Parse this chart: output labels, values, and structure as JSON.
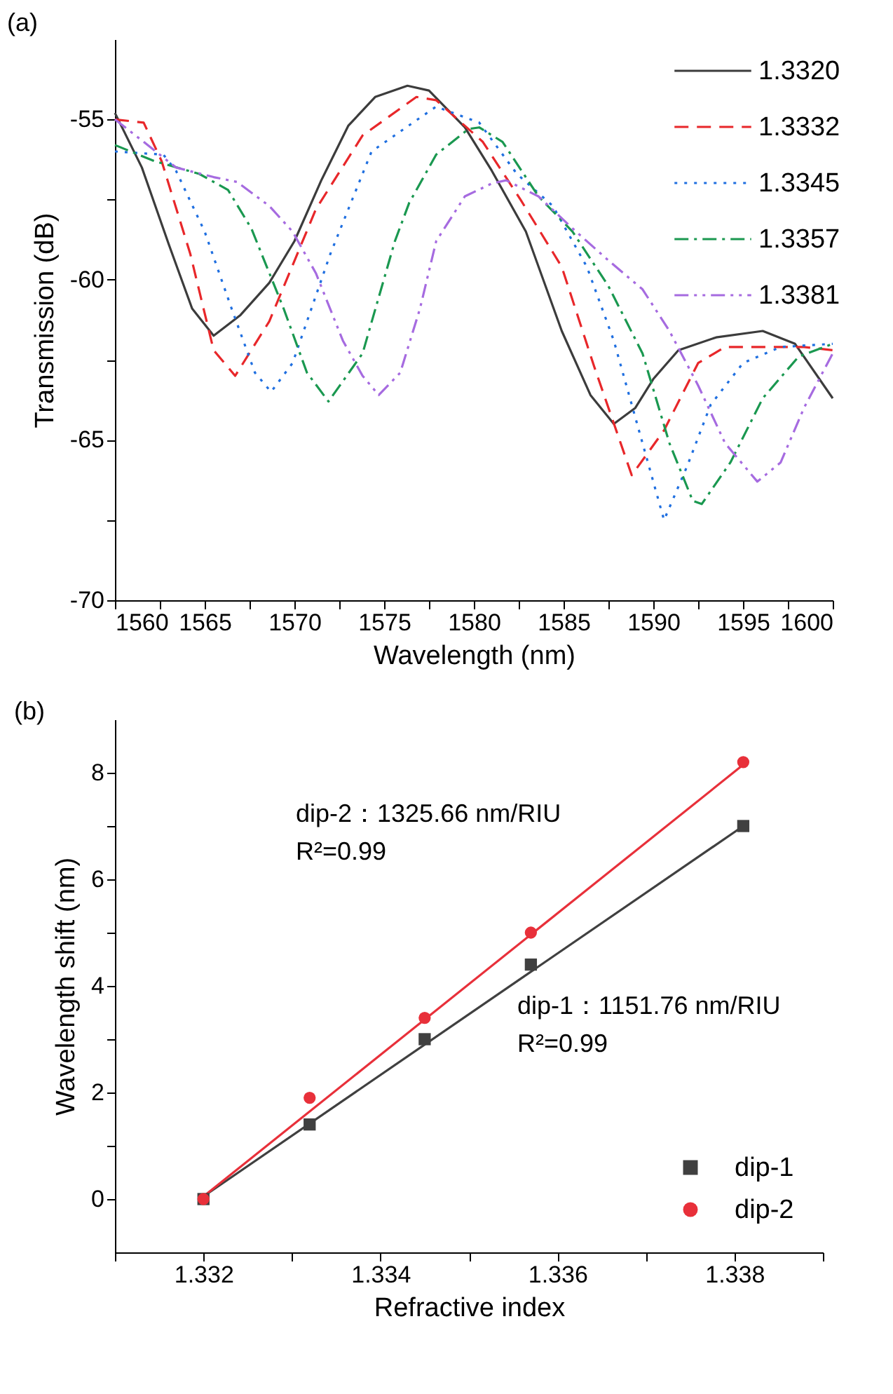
{
  "chart_data": [
    {
      "type": "line",
      "title": "(a)",
      "xlabel": "Wavelength (nm)",
      "ylabel": "Transmission (dB)",
      "xlim": [
        1560,
        1600
      ],
      "ylim": [
        -70,
        -52.5
      ],
      "xticks": [
        1560,
        {
          "value": 1562.5,
          "label": null
        },
        1565,
        {
          "value": 1567.5,
          "label": null
        },
        1570,
        {
          "value": 1572.5,
          "label": null
        },
        1575,
        {
          "value": 1577.5,
          "label": null
        },
        1580,
        {
          "value": 1582.5,
          "label": null
        },
        1585,
        {
          "value": 1587.5,
          "label": null
        },
        1590,
        {
          "value": 1592.5,
          "label": null
        },
        1595,
        {
          "value": 1597.5,
          "label": null
        },
        1600
      ],
      "yticks": [
        -70,
        {
          "value": -67.5,
          "label": null
        },
        -65,
        {
          "value": -62.5,
          "label": null
        },
        -60,
        {
          "value": -57.5,
          "label": null
        },
        -55
      ],
      "grid": false,
      "legend": "top right",
      "series": [
        {
          "name": "1.3320",
          "color": "#3c3c3c",
          "line_style": "solid",
          "x": [
            1560,
            1561.5,
            1563,
            1564.3,
            1565.5,
            1567,
            1568.6,
            1570,
            1571.5,
            1573,
            1574.5,
            1576.3,
            1577.5,
            1579.5,
            1581,
            1582.9,
            1584.9,
            1586.5,
            1587.8,
            1589,
            1590,
            1591.4,
            1593.5,
            1596.1,
            1597.9,
            1600
          ],
          "values": [
            -54.8,
            -56.5,
            -58.9,
            -60.9,
            -61.75,
            -61.1,
            -60.1,
            -58.8,
            -56.9,
            -55.2,
            -54.3,
            -53.95,
            -54.1,
            -55.25,
            -56.6,
            -58.5,
            -61.6,
            -63.6,
            -64.5,
            -64.0,
            -63.1,
            -62.2,
            -61.8,
            -61.6,
            -62.0,
            -63.7
          ]
        },
        {
          "name": "1.3332",
          "color": "#e8272a",
          "line_style": "dashed",
          "x": [
            1560,
            1561.6,
            1562.6,
            1564.2,
            1565.5,
            1566.7,
            1568.6,
            1571.2,
            1573.8,
            1576.8,
            1577.9,
            1580.5,
            1582.6,
            1584.9,
            1586.7,
            1588.8,
            1590.6,
            1592.5,
            1594,
            1598.4,
            1600
          ],
          "values": [
            -55.0,
            -55.1,
            -56.3,
            -59.2,
            -62.2,
            -63.0,
            -61.3,
            -57.8,
            -55.5,
            -54.3,
            -54.4,
            -55.7,
            -57.5,
            -59.6,
            -62.7,
            -66.1,
            -64.7,
            -62.6,
            -62.1,
            -62.1,
            -62.2
          ]
        },
        {
          "name": "1.3345",
          "color": "#1f6fe0",
          "line_style": "dotted",
          "x": [
            1560,
            1562.7,
            1563.4,
            1565,
            1566.5,
            1567.8,
            1568.7,
            1569.9,
            1572,
            1574.3,
            1577.9,
            1580.3,
            1582.4,
            1584.4,
            1586.3,
            1587.8,
            1589.4,
            1590.6,
            1591.9,
            1593.2,
            1595,
            1597.1,
            1600
          ],
          "values": [
            -56.0,
            -56.1,
            -56.6,
            -58.5,
            -60.9,
            -62.9,
            -63.5,
            -62.6,
            -59.2,
            -56.0,
            -54.6,
            -55.1,
            -56.7,
            -57.7,
            -59.6,
            -61.9,
            -65.1,
            -67.5,
            -65.8,
            -63.9,
            -62.6,
            -62.1,
            -62.0
          ]
        },
        {
          "name": "1.3357",
          "color": "#1a9850",
          "line_style": "dashdot",
          "x": [
            1560,
            1562.2,
            1564.7,
            1566.3,
            1567.6,
            1569.4,
            1570.7,
            1571.9,
            1573.8,
            1575.6,
            1576.4,
            1577.9,
            1579.7,
            1580.3,
            1581.6,
            1583.6,
            1585.5,
            1587.5,
            1589.4,
            1590.9,
            1592.2,
            1592.7,
            1594.3,
            1596.1,
            1598.1,
            1600
          ],
          "values": [
            -55.8,
            -56.3,
            -56.7,
            -57.2,
            -58.4,
            -60.9,
            -62.9,
            -63.8,
            -62.3,
            -58.8,
            -57.6,
            -56.1,
            -55.3,
            -55.25,
            -55.7,
            -57.4,
            -58.5,
            -60.2,
            -62.3,
            -65.1,
            -66.9,
            -67.0,
            -65.7,
            -63.7,
            -62.4,
            -62.0
          ]
        },
        {
          "name": "1.3381",
          "color": "#a66be0",
          "line_style": "dashdotdot",
          "x": [
            1560,
            1561.6,
            1563.4,
            1565.5,
            1566.8,
            1568.6,
            1569.9,
            1571.2,
            1572.7,
            1573.8,
            1574.7,
            1575.9,
            1577,
            1577.9,
            1579.5,
            1581,
            1581.8,
            1583.6,
            1585.5,
            1587.5,
            1589.4,
            1590.9,
            1592.5,
            1594,
            1595.8,
            1597.1,
            1598.4,
            1600
          ],
          "values": [
            -55.0,
            -55.7,
            -56.5,
            -56.8,
            -56.95,
            -57.7,
            -58.5,
            -59.8,
            -61.9,
            -63.0,
            -63.6,
            -62.9,
            -60.9,
            -58.8,
            -57.4,
            -57.0,
            -56.9,
            -57.4,
            -58.4,
            -59.4,
            -60.3,
            -61.6,
            -63.3,
            -65.1,
            -66.3,
            -65.7,
            -64.0,
            -62.3
          ]
        }
      ]
    },
    {
      "type": "scatter",
      "title": "(b)",
      "xlabel": "Refractive index",
      "ylabel": "Wavelength shift (nm)",
      "xlim": [
        1.331,
        1.339
      ],
      "ylim": [
        -1,
        9
      ],
      "xticks": [
        {
          "value": 1.331,
          "label": null
        },
        1.332,
        {
          "value": 1.333,
          "label": null
        },
        1.334,
        {
          "value": 1.335,
          "label": null
        },
        1.336,
        {
          "value": 1.337,
          "label": null
        },
        1.338,
        {
          "value": 1.339,
          "label": null
        }
      ],
      "yticks": [
        0,
        {
          "value": 1,
          "label": null
        },
        2,
        {
          "value": 3,
          "label": null
        },
        4,
        {
          "value": 5,
          "label": null
        },
        6,
        {
          "value": 7,
          "label": null
        },
        8
      ],
      "grid": false,
      "legend": "bottom right",
      "x": [
        1.332,
        1.3332,
        1.3345,
        1.3357,
        1.3381
      ],
      "series": [
        {
          "type": "line",
          "color": "#404040",
          "line_style": "solid",
          "x": [
            1.332,
            1.3381
          ],
          "values": [
            0.05,
            7.0
          ]
        },
        {
          "type": "line",
          "color": "#e8303a",
          "line_style": "solid",
          "x": [
            1.332,
            1.3381
          ],
          "values": [
            0.05,
            8.15
          ]
        },
        {
          "name": "dip-1",
          "marker": "square",
          "color": "#404040",
          "values": [
            0,
            1.4,
            3.0,
            4.4,
            7.0
          ]
        },
        {
          "name": "dip-2",
          "marker": "circle",
          "color": "#e8303a",
          "values": [
            0,
            1.9,
            3.4,
            5.0,
            8.2
          ]
        }
      ],
      "annotations": [
        "dip-2：1325.66 nm/RIU",
        "R²=0.99",
        "dip-1：1151.76 nm/RIU",
        "R²=0.99"
      ]
    }
  ]
}
